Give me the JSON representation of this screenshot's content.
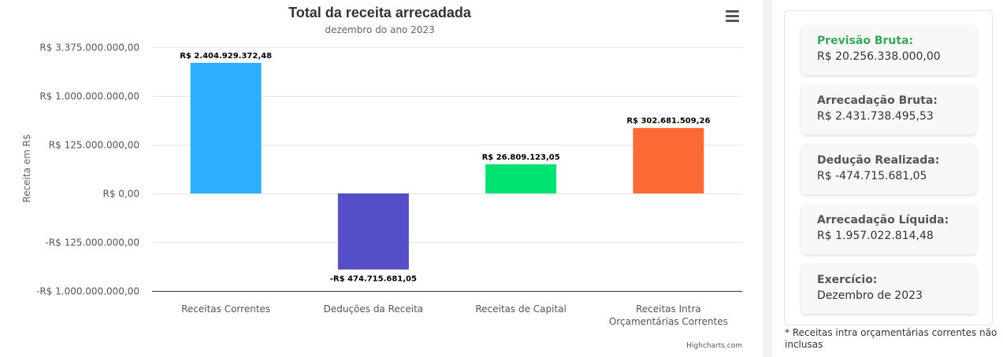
{
  "chart_data": {
    "type": "bar",
    "title": "Total da receita arrecadada",
    "subtitle": "dezembro do ano 2023",
    "ylabel": "Receita em R$",
    "xlabel": "",
    "categories": [
      "Receitas Correntes",
      "Deduções da Receita",
      "Receitas de Capital",
      "Receitas Intra Orçamentárias Correntes"
    ],
    "values": [
      2404929372.48,
      -474715681.05,
      26809123.05,
      302681509.26
    ],
    "data_labels": [
      "R$ 2.404.929.372,48",
      "-R$ 474.715.681,05",
      "R$ 26.809.123,05",
      "R$ 302.681.509,26"
    ],
    "colors": [
      "#2caffe",
      "#544fc5",
      "#00e272",
      "#fe6a35"
    ],
    "y_scale": "cubic-root",
    "y_ticks": [
      {
        "value": 3375000000,
        "label": "R$ 3.375.000.000,00"
      },
      {
        "value": 1000000000,
        "label": "R$ 1.000.000.000,00"
      },
      {
        "value": 125000000,
        "label": "R$ 125.000.000,00"
      },
      {
        "value": 0,
        "label": "R$ 0,00"
      },
      {
        "value": -125000000,
        "label": "-R$ 125.000.000,00"
      },
      {
        "value": -1000000000,
        "label": "-R$ 1.000.000.000,00"
      }
    ],
    "ylim": [
      -1000000000,
      3375000000
    ],
    "grid": true,
    "credits": "Highcharts.com"
  },
  "menu": {
    "icon": "hamburger-icon"
  },
  "summary": {
    "cards": [
      {
        "label": "Previsão Bruta:",
        "value": "R$ 20.256.338.000,00",
        "accent": true
      },
      {
        "label": "Arrecadação Bruta:",
        "value": "R$ 2.431.738.495,53",
        "accent": false
      },
      {
        "label": "Dedução Realizada:",
        "value": "R$ -474.715.681,05",
        "accent": false
      },
      {
        "label": "Arrecadação Líquida:",
        "value": "R$ 1.957.022.814,48",
        "accent": false
      },
      {
        "label": "Exercício:",
        "value": "Dezembro de 2023",
        "accent": false
      }
    ],
    "footnote": "* Receitas intra orçamentárias correntes não inclusas"
  }
}
